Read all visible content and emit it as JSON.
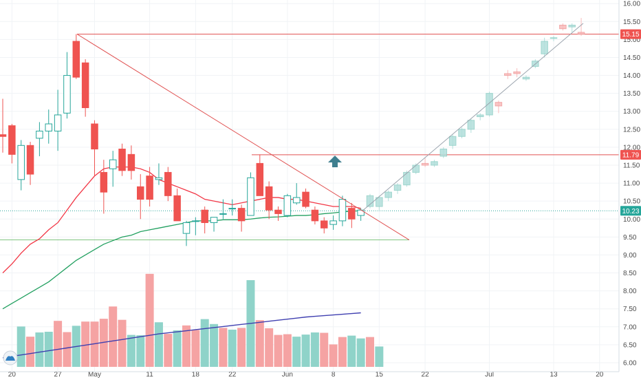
{
  "chart_data": {
    "type": "candlestick",
    "colors": {
      "up": "#26a69a",
      "down": "#ef5350",
      "up_projection": "#b2dfdb",
      "down_projection": "#f8bbbb",
      "sma_fast": "#f23645",
      "sma_slow": "#22a060",
      "volume_sma": "#3f3fb0",
      "trendline": "#e05050",
      "resistance": "#e05050",
      "support": "#7fc47f",
      "current_price": "#26a69a",
      "arrow": "#3f7f8f"
    },
    "y_axis": {
      "min": 5.75,
      "max": 16.1,
      "ticks": [
        "6.00",
        "6.50",
        "7.00",
        "7.50",
        "8.00",
        "8.50",
        "9.00",
        "9.50",
        "10.00",
        "10.50",
        "11.00",
        "11.50",
        "12.00",
        "12.50",
        "13.00",
        "13.50",
        "14.00",
        "14.50",
        "15.00",
        "15.50",
        "16.00"
      ]
    },
    "x_axis": {
      "ticks": [
        {
          "label": "20",
          "i": -1
        },
        {
          "label": "27",
          "i": 4
        },
        {
          "label": "May",
          "i": 8
        },
        {
          "label": "11",
          "i": 14
        },
        {
          "label": "18",
          "i": 19
        },
        {
          "label": "22",
          "i": 23
        },
        {
          "label": "Jun",
          "i": 29
        },
        {
          "label": "8",
          "i": 34
        },
        {
          "label": "15",
          "i": 39
        },
        {
          "label": "22",
          "i": 44
        },
        {
          "label": "Jul",
          "i": 51
        },
        {
          "label": "13",
          "i": 58
        },
        {
          "label": "20",
          "i": 63
        }
      ]
    },
    "candles": [
      {
        "o": 12.35,
        "h": 13.35,
        "l": 11.85,
        "c": 12.3
      },
      {
        "o": 12.6,
        "h": 12.65,
        "l": 11.55,
        "c": 11.8
      },
      {
        "o": 11.1,
        "h": 12.2,
        "l": 10.8,
        "c": 12.05
      },
      {
        "o": 12.05,
        "h": 12.15,
        "l": 10.95,
        "c": 11.25
      },
      {
        "o": 12.25,
        "h": 12.7,
        "l": 11.75,
        "c": 12.45
      },
      {
        "o": 12.45,
        "h": 13.05,
        "l": 12.1,
        "c": 12.65
      },
      {
        "o": 12.45,
        "h": 13.6,
        "l": 11.9,
        "c": 12.9
      },
      {
        "o": 12.95,
        "h": 14.65,
        "l": 12.8,
        "c": 14.0
      },
      {
        "o": 14.95,
        "h": 15.15,
        "l": 13.9,
        "c": 13.95
      },
      {
        "o": 14.35,
        "h": 14.45,
        "l": 12.85,
        "c": 13.1
      },
      {
        "o": 12.65,
        "h": 12.75,
        "l": 11.2,
        "c": 11.95
      },
      {
        "o": 11.3,
        "h": 11.65,
        "l": 10.15,
        "c": 10.75
      },
      {
        "o": 11.4,
        "h": 11.9,
        "l": 10.9,
        "c": 11.65
      },
      {
        "o": 11.95,
        "h": 12.1,
        "l": 11.2,
        "c": 11.35
      },
      {
        "o": 11.8,
        "h": 12.05,
        "l": 11.1,
        "c": 11.35
      },
      {
        "o": 10.9,
        "h": 11.25,
        "l": 10.0,
        "c": 10.55
      },
      {
        "o": 11.2,
        "h": 11.45,
        "l": 10.35,
        "c": 10.55
      },
      {
        "o": 11.1,
        "h": 11.55,
        "l": 10.95,
        "c": 11.15
      },
      {
        "o": 11.3,
        "h": 11.45,
        "l": 10.5,
        "c": 10.65
      },
      {
        "o": 10.65,
        "h": 10.85,
        "l": 9.95,
        "c": 9.95
      },
      {
        "o": 9.6,
        "h": 9.95,
        "l": 9.25,
        "c": 9.9
      },
      {
        "o": 9.95,
        "h": 10.05,
        "l": 9.55,
        "c": 9.95
      },
      {
        "o": 10.25,
        "h": 10.35,
        "l": 9.6,
        "c": 9.9
      },
      {
        "o": 9.9,
        "h": 10.05,
        "l": 9.65,
        "c": 10.05
      },
      {
        "o": 10.15,
        "h": 10.55,
        "l": 10.0,
        "c": 10.15
      },
      {
        "o": 10.3,
        "h": 10.55,
        "l": 10.1,
        "c": 10.3
      },
      {
        "o": 10.3,
        "h": 10.4,
        "l": 9.65,
        "c": 9.95
      },
      {
        "o": 10.1,
        "h": 11.3,
        "l": 10.1,
        "c": 11.15
      },
      {
        "o": 11.55,
        "h": 11.8,
        "l": 10.65,
        "c": 10.65
      },
      {
        "o": 10.9,
        "h": 11.05,
        "l": 10.0,
        "c": 10.25
      },
      {
        "o": 10.25,
        "h": 10.35,
        "l": 9.95,
        "c": 10.15
      },
      {
        "o": 10.1,
        "h": 10.7,
        "l": 10.05,
        "c": 10.65
      },
      {
        "o": 10.45,
        "h": 11.0,
        "l": 10.4,
        "c": 10.6
      },
      {
        "o": 10.75,
        "h": 10.85,
        "l": 10.3,
        "c": 10.35
      },
      {
        "o": 10.25,
        "h": 10.35,
        "l": 9.85,
        "c": 9.95
      },
      {
        "o": 9.95,
        "h": 10.05,
        "l": 9.6,
        "c": 9.75
      },
      {
        "o": 9.85,
        "h": 10.1,
        "l": 9.7,
        "c": 9.95
      },
      {
        "o": 9.95,
        "h": 10.65,
        "l": 9.8,
        "c": 10.55
      },
      {
        "o": 10.3,
        "h": 10.45,
        "l": 9.75,
        "c": 10.0
      },
      {
        "o": 10.1,
        "h": 10.3,
        "l": 9.95,
        "c": 10.25
      }
    ],
    "projection_candles": [
      {
        "o": 10.35,
        "h": 10.7,
        "l": 10.3,
        "c": 10.65
      },
      {
        "o": 10.35,
        "h": 10.65,
        "l": 10.25,
        "c": 10.6
      },
      {
        "o": 10.6,
        "h": 10.8,
        "l": 10.5,
        "c": 10.75
      },
      {
        "o": 10.8,
        "h": 11.0,
        "l": 10.7,
        "c": 10.95
      },
      {
        "o": 10.95,
        "h": 11.35,
        "l": 10.9,
        "c": 11.3
      },
      {
        "o": 11.3,
        "h": 11.55,
        "l": 11.25,
        "c": 11.5
      },
      {
        "o": 11.55,
        "h": 11.7,
        "l": 11.45,
        "c": 11.5
      },
      {
        "o": 11.5,
        "h": 11.65,
        "l": 11.45,
        "c": 11.6
      },
      {
        "o": 11.75,
        "h": 12.0,
        "l": 11.7,
        "c": 11.95
      },
      {
        "o": 12.05,
        "h": 12.35,
        "l": 11.95,
        "c": 12.3
      },
      {
        "o": 12.3,
        "h": 12.55,
        "l": 12.25,
        "c": 12.5
      },
      {
        "o": 12.5,
        "h": 12.8,
        "l": 12.4,
        "c": 12.75
      },
      {
        "o": 12.85,
        "h": 12.95,
        "l": 12.75,
        "c": 12.9
      },
      {
        "o": 12.9,
        "h": 13.55,
        "l": 12.85,
        "c": 13.5
      },
      {
        "o": 13.25,
        "h": 13.3,
        "l": 12.95,
        "c": 13.15
      },
      {
        "o": 14.05,
        "h": 14.15,
        "l": 13.9,
        "c": 14.0
      },
      {
        "o": 14.1,
        "h": 14.2,
        "l": 13.95,
        "c": 14.05
      },
      {
        "o": 13.9,
        "h": 14.0,
        "l": 13.85,
        "c": 13.95
      },
      {
        "o": 14.25,
        "h": 14.45,
        "l": 14.2,
        "c": 14.4
      },
      {
        "o": 14.6,
        "h": 15.05,
        "l": 14.5,
        "c": 14.95
      },
      {
        "o": 15.05,
        "h": 15.1,
        "l": 14.95,
        "c": 15.05
      },
      {
        "o": 15.4,
        "h": 15.45,
        "l": 15.25,
        "c": 15.3
      },
      {
        "o": 15.35,
        "h": 15.45,
        "l": 15.2,
        "c": 15.4
      },
      {
        "o": 15.2,
        "h": 15.6,
        "l": 15.1,
        "c": 15.15
      }
    ],
    "sma_fast": [
      8.5,
      8.75,
      9.05,
      9.3,
      9.45,
      9.7,
      9.9,
      10.25,
      10.6,
      10.9,
      11.2,
      11.4,
      11.45,
      11.45,
      11.45,
      11.4,
      11.3,
      11.1,
      11.0,
      10.9,
      10.8,
      10.7,
      10.55,
      10.5,
      10.45,
      10.4,
      10.45,
      10.5,
      10.55,
      10.6,
      10.6,
      10.55,
      10.55,
      10.5,
      10.45,
      10.4,
      10.35,
      10.35,
      10.35,
      10.3
    ],
    "sma_slow": [
      7.5,
      7.65,
      7.8,
      7.95,
      8.1,
      8.25,
      8.45,
      8.65,
      8.85,
      9.0,
      9.15,
      9.3,
      9.4,
      9.5,
      9.55,
      9.65,
      9.7,
      9.75,
      9.8,
      9.85,
      9.9,
      9.95,
      9.95,
      9.95,
      9.98,
      9.98,
      9.98,
      10.0,
      10.03,
      10.05,
      10.06,
      10.08,
      10.1,
      10.1,
      10.12,
      10.15,
      10.17,
      10.2,
      10.22,
      10.23
    ],
    "volume": {
      "values": [
        11.5,
        8.6,
        9.8,
        10.0,
        13.1,
        9.9,
        11.7,
        12.9,
        12.9,
        13.7,
        17.2,
        13.4,
        9.1,
        9.0,
        26.5,
        12.7,
        9.4,
        10.4,
        11.8,
        10.5,
        13.6,
        12.2,
        11.1,
        10.6,
        11.1,
        24.7,
        13.3,
        11.0,
        9.1,
        9.3,
        8.6,
        9.2,
        9.8,
        9.7,
        6.4,
        8.5,
        8.9,
        8.1,
        8.5,
        5.8
      ],
      "up": [
        true,
        false,
        true,
        true,
        false,
        false,
        true,
        false,
        false,
        false,
        false,
        false,
        true,
        true,
        false,
        true,
        false,
        true,
        false,
        false,
        true,
        true,
        false,
        true,
        false,
        true,
        false,
        false,
        false,
        false,
        true,
        true,
        true,
        false,
        false,
        false,
        true,
        true,
        false,
        true
      ],
      "max": 30,
      "sma": [
        2.2,
        2.6,
        3.0,
        3.4,
        3.8,
        4.2,
        4.6,
        5.0,
        5.4,
        5.8,
        6.2,
        6.6,
        7.0,
        7.4,
        7.8,
        8.2,
        8.6,
        9.0,
        9.3,
        9.6,
        9.9,
        10.2,
        10.5,
        10.8,
        11.1,
        11.4,
        11.7,
        12.0,
        12.3,
        12.6,
        12.9,
        13.2,
        13.5,
        13.8,
        14.0,
        14.2,
        14.4,
        14.6,
        14.8,
        15.0
      ]
    },
    "lines": {
      "resistance_top": 15.15,
      "resistance_mid": 11.79,
      "support": 9.42,
      "current": 10.23
    },
    "price_tags": [
      {
        "label": "15.15",
        "value": 15.15,
        "color": "#ef5350"
      },
      {
        "label": "11.79",
        "value": 11.79,
        "color": "#ef5350"
      },
      {
        "label": "10.23",
        "value": 10.23,
        "color": "#26a69a"
      }
    ],
    "grid": true
  }
}
